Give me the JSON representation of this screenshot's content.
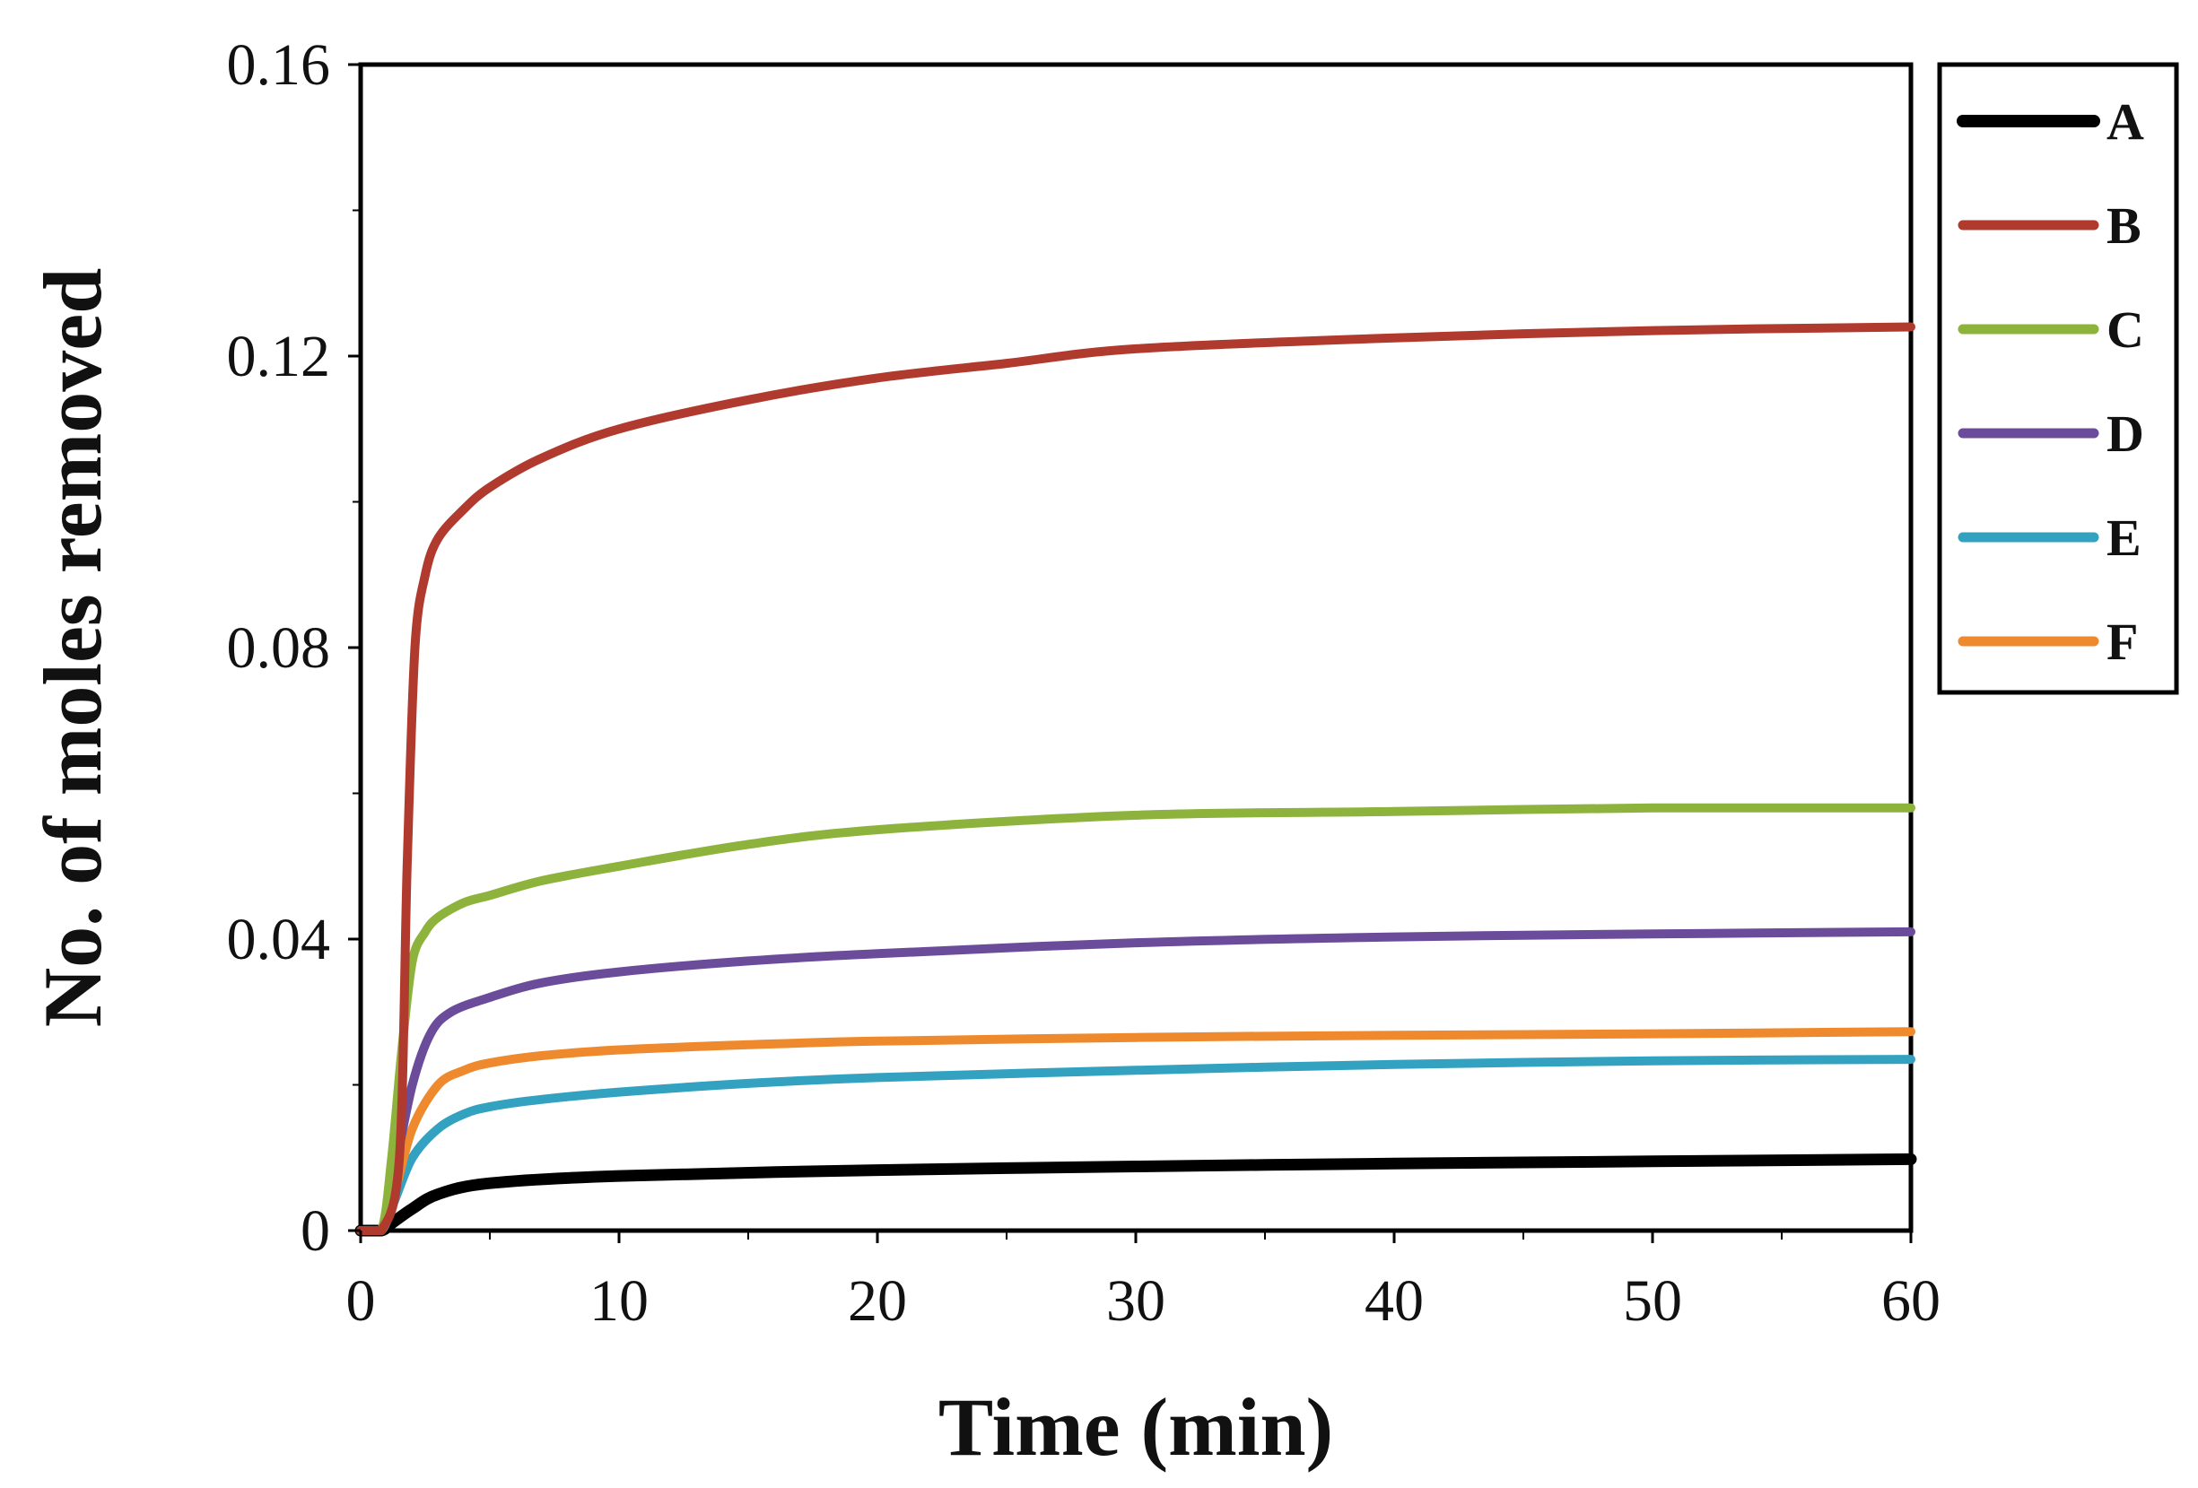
{
  "chart_data": {
    "type": "line",
    "title": "",
    "xlabel": "Time (min)",
    "ylabel": "No. of moles removed",
    "xlim": [
      0,
      60
    ],
    "ylim": [
      0,
      0.16
    ],
    "xticks": [
      0,
      10,
      20,
      30,
      40,
      50,
      60
    ],
    "xtick_labels": [
      "0",
      "10",
      "20",
      "30",
      "40",
      "50",
      "60"
    ],
    "yticks": [
      0,
      0.04,
      0.08,
      0.12,
      0.16
    ],
    "ytick_labels": [
      "0",
      "0.04",
      "0.08",
      "0.12",
      "0.16"
    ],
    "grid": false,
    "legend_position": "right",
    "series": [
      {
        "name": "A",
        "color": "#000000",
        "x": [
          0,
          0.8,
          1.2,
          2,
          3,
          5,
          10,
          20,
          30,
          40,
          50,
          60
        ],
        "y": [
          0,
          0,
          0.001,
          0.003,
          0.005,
          0.0065,
          0.0075,
          0.0083,
          0.0088,
          0.0092,
          0.0095,
          0.0098
        ]
      },
      {
        "name": "B",
        "color": "#B03A2E",
        "x": [
          0,
          0.8,
          1.5,
          1.8,
          2.1,
          2.5,
          3,
          4,
          5,
          7,
          10,
          15,
          20,
          25,
          30,
          40,
          50,
          60
        ],
        "y": [
          0,
          0,
          0.01,
          0.05,
          0.08,
          0.09,
          0.095,
          0.099,
          0.102,
          0.106,
          0.11,
          0.114,
          0.117,
          0.119,
          0.121,
          0.1225,
          0.1235,
          0.124
        ]
      },
      {
        "name": "C",
        "color": "#8DB33C",
        "x": [
          0,
          0.8,
          1.2,
          1.6,
          2,
          2.5,
          3,
          4,
          5,
          7,
          10,
          15,
          20,
          30,
          40,
          50,
          60
        ],
        "y": [
          0,
          0,
          0.01,
          0.025,
          0.037,
          0.041,
          0.043,
          0.045,
          0.046,
          0.048,
          0.05,
          0.053,
          0.055,
          0.057,
          0.0575,
          0.058,
          0.058
        ]
      },
      {
        "name": "D",
        "color": "#6B4C9A",
        "x": [
          0,
          0.8,
          1.3,
          2,
          2.7,
          3.5,
          5,
          7,
          10,
          15,
          20,
          30,
          40,
          50,
          60
        ],
        "y": [
          0,
          0,
          0.008,
          0.02,
          0.027,
          0.03,
          0.032,
          0.034,
          0.0355,
          0.037,
          0.038,
          0.0395,
          0.0403,
          0.0407,
          0.041
        ]
      },
      {
        "name": "E",
        "color": "#33A1C0",
        "x": [
          0,
          0.8,
          1.3,
          2,
          3,
          4,
          5,
          7,
          10,
          15,
          20,
          30,
          40,
          50,
          60
        ],
        "y": [
          0,
          0,
          0.004,
          0.01,
          0.014,
          0.016,
          0.017,
          0.018,
          0.019,
          0.0202,
          0.021,
          0.022,
          0.0228,
          0.0233,
          0.0235
        ]
      },
      {
        "name": "F",
        "color": "#EE8A2D",
        "x": [
          0,
          0.8,
          1.3,
          2,
          3,
          4,
          5,
          7,
          10,
          15,
          20,
          30,
          40,
          50,
          60
        ],
        "y": [
          0,
          0,
          0.005,
          0.014,
          0.02,
          0.022,
          0.023,
          0.024,
          0.0248,
          0.0255,
          0.026,
          0.0265,
          0.0268,
          0.027,
          0.0273
        ]
      }
    ]
  }
}
